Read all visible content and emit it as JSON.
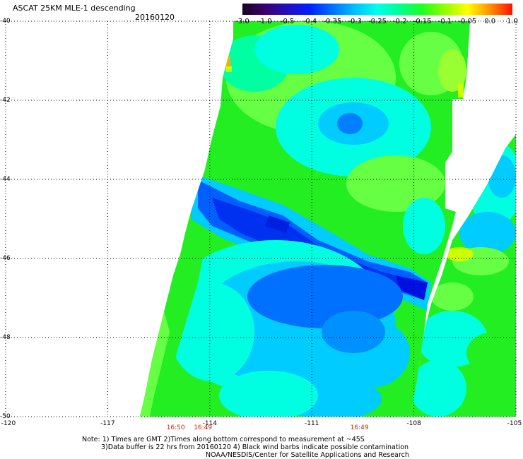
{
  "header": {
    "title": "ASCAT 25KM MLE-1 descending",
    "date": "20160120"
  },
  "colorbar": {
    "labels": [
      "-3.0",
      "-1.0",
      "-0.5",
      "-0.4",
      "-0.35",
      "-0.3",
      "-0.25",
      "-0.2",
      "-0.15",
      "-0.1",
      "-0.05",
      "0.0",
      "1.0"
    ],
    "colors": [
      "#1a0020",
      "#3a0070",
      "#2010c0",
      "#0020ff",
      "#0070ff",
      "#00c0ff",
      "#00ffe8",
      "#00ff90",
      "#20ff20",
      "#90ff00",
      "#ffff00",
      "#ff9000",
      "#ff1000"
    ]
  },
  "axes": {
    "lat_labels": [
      "-40",
      "-42",
      "-44",
      "-46",
      "-48",
      "-50"
    ],
    "lon_labels": [
      "-120",
      "-117",
      "-114",
      "-111",
      "-108",
      "-105"
    ],
    "lon_values": [
      -120,
      -117,
      -114,
      -111,
      -108,
      -105
    ],
    "lat_values": [
      -40,
      -42,
      -44,
      -46,
      -48,
      -50
    ]
  },
  "times": [
    {
      "lon": -115,
      "label": "16:50"
    },
    {
      "lon": -114.2,
      "label": "16:49"
    },
    {
      "lon": -109.6,
      "label": "16:49"
    }
  ],
  "notes": {
    "line1": "Note: 1) Times are GMT 2)Times along bottom correspond to measurement at ~45S",
    "line2": "3)Data buffer is 22 hrs from 20160120 4) Black wind barbs indicate possible contamination",
    "line3": "NOAA/NESDIS/Center for Satellite Applications and Research"
  },
  "palette": {
    "green": "#22ee22",
    "lightgreen": "#66ff44",
    "cyan": "#00ffe0",
    "lightblue": "#00ccff",
    "blue": "#0044ff",
    "darkblue": "#0010e0",
    "yellow": "#ccff00",
    "orange": "#ffaa00"
  }
}
